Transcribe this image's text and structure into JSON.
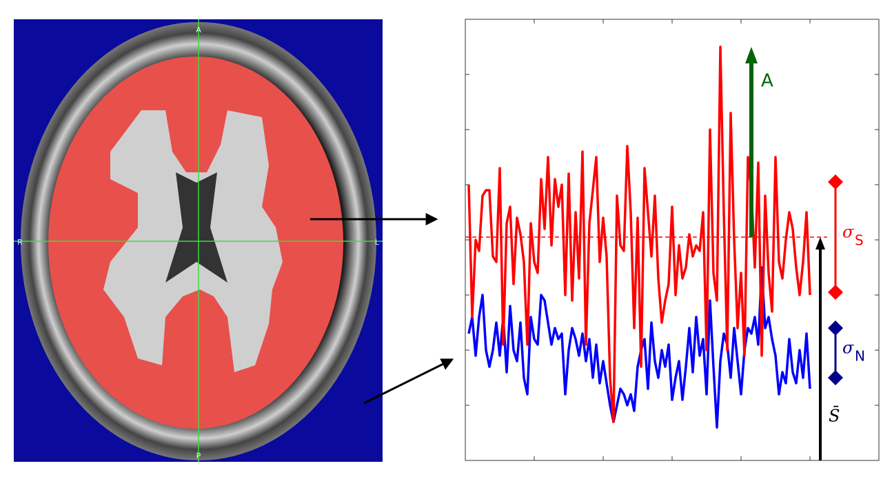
{
  "image": {
    "labels": {
      "top": "A",
      "left": "R",
      "right": "L",
      "bottom": "P"
    }
  },
  "chart_data": {
    "type": "line",
    "x": [
      0.05,
      0.1,
      0.15,
      0.2,
      0.25,
      0.3,
      0.35,
      0.4,
      0.45,
      0.5,
      0.55,
      0.6,
      0.65,
      0.7,
      0.75,
      0.8,
      0.85,
      0.9,
      0.95,
      1.0,
      1.05,
      1.1,
      1.15,
      1.2,
      1.25,
      1.3,
      1.35,
      1.4,
      1.45,
      1.5,
      1.55,
      1.6,
      1.65,
      1.7,
      1.75,
      1.8,
      1.85,
      1.9,
      1.95,
      2.0,
      2.05,
      2.1,
      2.15,
      2.2,
      2.25,
      2.3,
      2.35,
      2.4,
      2.45,
      2.5,
      2.55,
      2.6,
      2.65,
      2.7,
      2.75,
      2.8,
      2.85,
      2.9,
      2.95,
      3.0,
      3.05,
      3.1,
      3.15,
      3.2,
      3.25,
      3.3,
      3.35,
      3.4,
      3.45,
      3.5,
      3.55,
      3.6,
      3.65,
      3.7,
      3.75,
      3.8,
      3.85,
      3.9,
      3.95,
      4.0,
      4.05,
      4.1,
      4.15,
      4.2,
      4.25,
      4.3,
      4.35,
      4.4,
      4.45,
      4.5,
      4.55,
      4.6,
      4.65,
      4.7,
      4.75,
      4.8,
      4.85,
      4.9,
      4.95,
      5.0
    ],
    "xlim": [
      0,
      6
    ],
    "xticks": [
      1,
      2,
      3,
      4,
      5
    ],
    "ylim": [
      0,
      8
    ],
    "yticks": [
      1,
      2,
      3,
      4,
      5,
      6,
      7
    ],
    "series": [
      {
        "color": "#ff0000",
        "values": [
          5.0,
          2.6,
          4.0,
          3.8,
          4.8,
          4.9,
          4.9,
          3.7,
          3.6,
          5.3,
          2.1,
          4.3,
          4.6,
          3.2,
          4.4,
          4.1,
          3.6,
          2.1,
          4.3,
          3.6,
          3.4,
          5.1,
          4.2,
          5.5,
          3.9,
          5.1,
          4.6,
          5.0,
          3.0,
          5.2,
          2.9,
          4.5,
          3.3,
          5.6,
          2.1,
          4.3,
          4.9,
          5.5,
          3.6,
          4.4,
          3.7,
          1.5,
          0.7,
          4.8,
          3.9,
          3.8,
          5.7,
          4.5,
          2.4,
          4.4,
          1.7,
          5.3,
          4.5,
          3.7,
          4.8,
          3.3,
          2.5,
          2.9,
          3.2,
          4.6,
          3.0,
          3.9,
          3.3,
          3.5,
          4.1,
          3.7,
          3.9,
          3.8,
          4.5,
          2.0,
          6.0,
          3.4,
          2.9,
          7.5,
          4.5,
          2.0,
          6.3,
          4.0,
          2.4,
          3.4,
          1.9,
          5.5,
          4.9,
          3.5,
          5.4,
          1.9,
          4.8,
          3.4,
          2.7,
          5.5,
          3.6,
          3.3,
          4.0,
          4.5,
          4.2,
          3.5,
          3.0,
          3.6,
          4.5,
          3.0
        ]
      },
      {
        "color": "#0000ff",
        "values": [
          2.3,
          2.6,
          1.9,
          2.6,
          3.0,
          2.0,
          1.7,
          2.0,
          2.5,
          1.9,
          2.6,
          1.6,
          2.8,
          2.0,
          1.8,
          2.5,
          1.5,
          1.2,
          2.6,
          2.2,
          2.1,
          3.0,
          2.9,
          2.5,
          2.1,
          2.4,
          2.2,
          2.3,
          1.2,
          2.0,
          2.4,
          2.2,
          1.9,
          2.3,
          1.8,
          2.2,
          1.5,
          2.1,
          1.4,
          1.8,
          1.4,
          1.0,
          0.7,
          1.0,
          1.3,
          1.2,
          1.0,
          1.2,
          0.9,
          1.7,
          2.0,
          2.2,
          1.3,
          2.5,
          1.8,
          1.5,
          2.0,
          1.7,
          2.1,
          1.1,
          1.5,
          1.8,
          1.1,
          1.7,
          2.4,
          1.6,
          2.6,
          1.9,
          2.2,
          1.2,
          2.9,
          1.7,
          0.6,
          1.8,
          2.3,
          2.1,
          1.5,
          2.4,
          1.8,
          1.2,
          2.0,
          2.4,
          2.3,
          2.6,
          2.1,
          3.5,
          2.4,
          2.6,
          2.2,
          1.9,
          1.2,
          1.6,
          1.4,
          2.2,
          1.6,
          1.4,
          2.0,
          1.5,
          2.3,
          1.3
        ]
      }
    ],
    "mean": {
      "value": 4.05,
      "color": "#ff0000"
    },
    "amplitude": {
      "label": "A",
      "x": 4.15,
      "from": 4.05,
      "to": 7.5,
      "color": "#006400"
    },
    "signal_sd": {
      "symbol": "σ",
      "subscript": "S",
      "x": 5.37,
      "low": 3.05,
      "high": 5.05,
      "color": "#ff0000"
    },
    "noise_sd": {
      "symbol": "σ",
      "subscript": "N",
      "x": 5.37,
      "low": 1.5,
      "high": 2.4,
      "color": "#00008b"
    },
    "mean_arrow": {
      "label": "S̄",
      "x": 5.15,
      "color": "#000000"
    }
  }
}
